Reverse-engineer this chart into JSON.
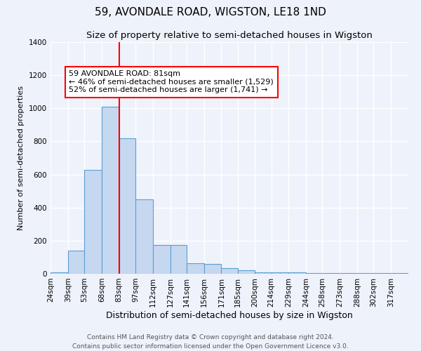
{
  "title": "59, AVONDALE ROAD, WIGSTON, LE18 1ND",
  "subtitle": "Size of property relative to semi-detached houses in Wigston",
  "xlabel": "Distribution of semi-detached houses by size in Wigston",
  "ylabel": "Number of semi-detached properties",
  "categories": [
    "24sqm",
    "39sqm",
    "53sqm",
    "68sqm",
    "83sqm",
    "97sqm",
    "112sqm",
    "127sqm",
    "141sqm",
    "156sqm",
    "171sqm",
    "185sqm",
    "200sqm",
    "214sqm",
    "229sqm",
    "244sqm",
    "258sqm",
    "273sqm",
    "288sqm",
    "302sqm",
    "317sqm"
  ],
  "bin_edges": [
    24,
    39,
    53,
    68,
    83,
    97,
    112,
    127,
    141,
    156,
    171,
    185,
    200,
    214,
    229,
    244,
    258,
    273,
    288,
    302,
    317,
    332
  ],
  "values": [
    10,
    140,
    630,
    1010,
    820,
    450,
    175,
    175,
    65,
    60,
    35,
    20,
    10,
    10,
    10,
    5,
    5,
    5,
    5,
    5,
    5
  ],
  "bar_color": "#c5d8f0",
  "bar_edge_color": "#5a9fd4",
  "vline_color": "red",
  "vline_x": 83,
  "annotation_text": "59 AVONDALE ROAD: 81sqm\n← 46% of semi-detached houses are smaller (1,529)\n52% of semi-detached houses are larger (1,741) →",
  "annotation_box_facecolor": "white",
  "annotation_box_edgecolor": "red",
  "ylim": [
    0,
    1400
  ],
  "yticks": [
    0,
    200,
    400,
    600,
    800,
    1000,
    1200,
    1400
  ],
  "bg_color": "#eef2fb",
  "grid_color": "white",
  "footer": "Contains HM Land Registry data © Crown copyright and database right 2024.\nContains public sector information licensed under the Open Government Licence v3.0.",
  "title_fontsize": 11,
  "subtitle_fontsize": 9.5,
  "xlabel_fontsize": 9,
  "ylabel_fontsize": 8,
  "tick_fontsize": 7.5,
  "annotation_fontsize": 8,
  "footer_fontsize": 6.5
}
